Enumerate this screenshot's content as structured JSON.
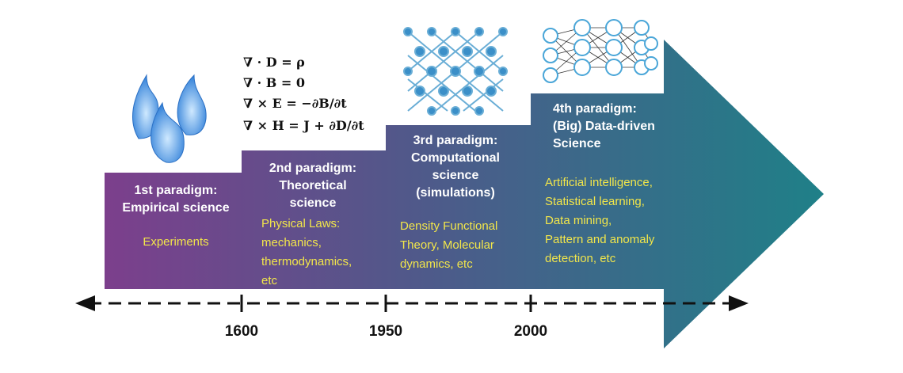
{
  "equations": [
    "∇ · D = ρ",
    "∇ · B = 0",
    "∇ × E = −∂B/∂t",
    "∇ × H = J + ∂D/∂t"
  ],
  "paradigms": [
    {
      "title": [
        "1st paradigm:",
        "Empirical science"
      ],
      "description": [
        "Experiments"
      ]
    },
    {
      "title": [
        "2nd paradigm:",
        "Theoretical",
        "science"
      ],
      "description": [
        "Physical Laws:",
        "mechanics,",
        "thermodynamics,",
        "etc"
      ]
    },
    {
      "title": [
        "3rd paradigm:",
        "Computational",
        "science",
        "(simulations)"
      ],
      "description": [
        "Density Functional",
        "Theory, Molecular",
        "dynamics, etc"
      ]
    },
    {
      "title": [
        "4th paradigm:",
        "(Big) Data-driven",
        "Science"
      ],
      "description": [
        "Artificial intelligence,",
        "Statistical learning,",
        "Data mining,",
        "Pattern and anomaly",
        "detection, etc"
      ]
    }
  ],
  "timeline": [
    "1600",
    "1950",
    "2000"
  ]
}
